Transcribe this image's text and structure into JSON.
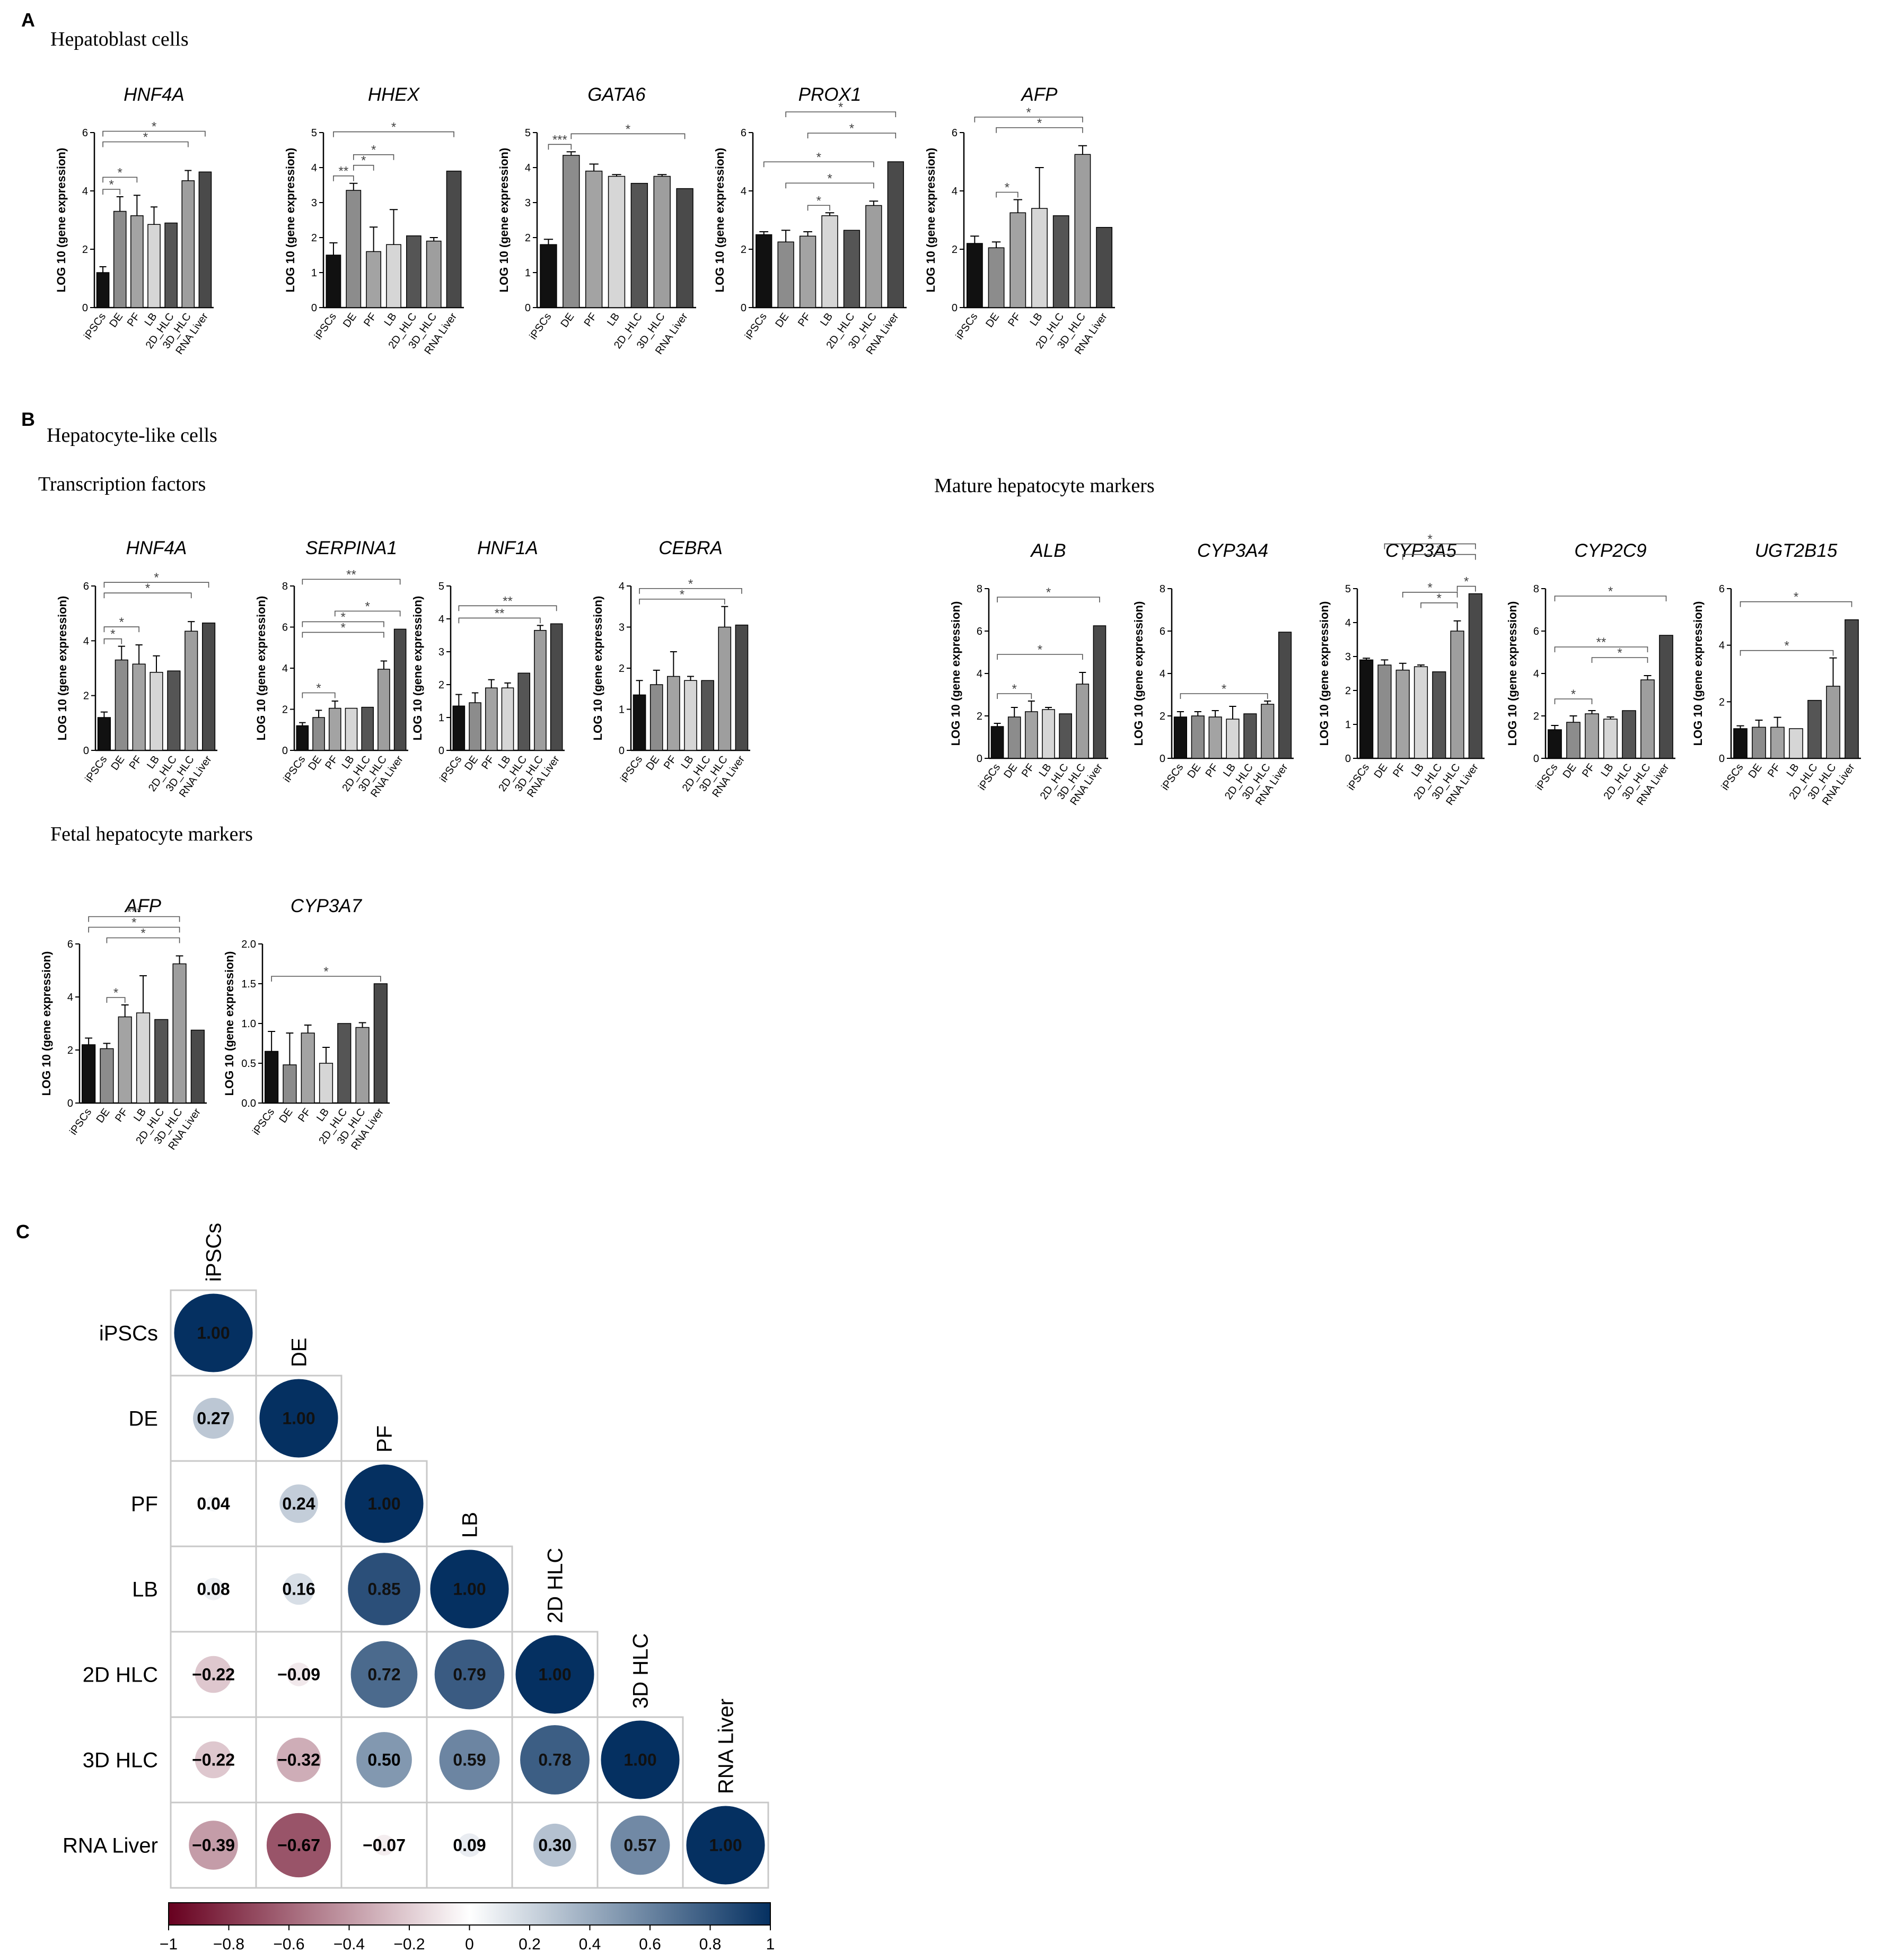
{
  "panels": {
    "A": {
      "letter": "A",
      "title": "Hepatoblast cells"
    },
    "B": {
      "letter": "B",
      "title": "Hepatocyte-like cells",
      "sub_tf": "Transcription factors",
      "sub_mature": "Mature hepatocyte markers",
      "sub_fetal": "Fetal hepatocyte markers"
    },
    "C": {
      "letter": "C"
    }
  },
  "y_axis_label": "LOG 10 (gene expression)",
  "categories": [
    "iPSCs",
    "DE",
    "PF",
    "LB",
    "2D_HLC",
    "3D_HLC",
    "RNA Liver"
  ],
  "bar_colors": [
    "#111111",
    "#8c8c8c",
    "#a3a3a3",
    "#d6d6d6",
    "#555555",
    "#9e9e9e",
    "#4a4a4a"
  ],
  "chart_data": [
    {
      "id": "A1",
      "type": "bar",
      "title": "HNF4A",
      "ylim": [
        0,
        6
      ],
      "yticks": [
        0,
        2,
        4,
        6
      ],
      "values": [
        1.2,
        3.3,
        3.15,
        2.85,
        2.9,
        4.35,
        4.65
      ],
      "errors": [
        0.2,
        0.5,
        0.7,
        0.6,
        0,
        0.35,
        0
      ],
      "sig": [
        {
          "from": 0,
          "to": 1,
          "label": "*"
        },
        {
          "from": 0,
          "to": 2,
          "label": "*"
        },
        {
          "from": 0,
          "to": 5,
          "label": "*"
        },
        {
          "from": 0,
          "to": 6,
          "label": "*"
        }
      ]
    },
    {
      "id": "A2",
      "type": "bar",
      "title": "HHEX",
      "ylim": [
        0,
        5
      ],
      "yticks": [
        0,
        1,
        2,
        3,
        4,
        5
      ],
      "values": [
        1.5,
        3.35,
        1.6,
        1.8,
        2.05,
        1.9,
        3.9
      ],
      "errors": [
        0.35,
        0.2,
        0.7,
        1.0,
        0,
        0.1,
        0
      ],
      "sig": [
        {
          "from": 0,
          "to": 1,
          "label": "**"
        },
        {
          "from": 1,
          "to": 2,
          "label": "*"
        },
        {
          "from": 1,
          "to": 3,
          "label": "*"
        },
        {
          "from": 0,
          "to": 6,
          "label": "*"
        }
      ]
    },
    {
      "id": "A3",
      "type": "bar",
      "title": "GATA6",
      "ylim": [
        0,
        5
      ],
      "yticks": [
        0,
        1,
        2,
        3,
        4,
        5
      ],
      "values": [
        1.8,
        4.35,
        3.9,
        3.75,
        3.55,
        3.75,
        3.4
      ],
      "errors": [
        0.15,
        0.1,
        0.2,
        0.05,
        0,
        0.05,
        0
      ],
      "sig": [
        {
          "from": 0,
          "to": 1,
          "label": "***"
        },
        {
          "from": 1,
          "to": 6,
          "label": "*"
        }
      ]
    },
    {
      "id": "A4",
      "type": "bar",
      "title": "PROX1",
      "ylim": [
        0,
        6
      ],
      "yticks": [
        0,
        2,
        4,
        6
      ],
      "values": [
        2.5,
        2.25,
        2.45,
        3.15,
        2.65,
        3.5,
        5.0
      ],
      "errors": [
        0.1,
        0.4,
        0.15,
        0.1,
        0,
        0.15,
        0
      ],
      "sig": [
        {
          "from": 2,
          "to": 3,
          "label": "*"
        },
        {
          "from": 1,
          "to": 5,
          "label": "*"
        },
        {
          "from": 0,
          "to": 5,
          "label": "*"
        },
        {
          "from": 2,
          "to": 6,
          "label": "*"
        },
        {
          "from": 1,
          "to": 6,
          "label": "*"
        }
      ]
    },
    {
      "id": "A5",
      "type": "bar",
      "title": "AFP",
      "ylim": [
        0,
        6
      ],
      "yticks": [
        0,
        2,
        4,
        6
      ],
      "values": [
        2.2,
        2.05,
        3.25,
        3.4,
        3.15,
        5.25,
        2.75
      ],
      "errors": [
        0.25,
        0.2,
        0.45,
        1.4,
        0,
        0.3,
        0
      ],
      "sig": [
        {
          "from": 1,
          "to": 2,
          "label": "*"
        },
        {
          "from": 1,
          "to": 5,
          "label": "*"
        },
        {
          "from": 0,
          "to": 5,
          "label": "*"
        }
      ]
    },
    {
      "id": "B1",
      "type": "bar",
      "title": "HNF4A",
      "ylim": [
        0,
        6
      ],
      "yticks": [
        0,
        2,
        4,
        6
      ],
      "values": [
        1.2,
        3.3,
        3.15,
        2.85,
        2.9,
        4.35,
        4.65
      ],
      "errors": [
        0.2,
        0.5,
        0.7,
        0.6,
        0,
        0.35,
        0
      ],
      "sig": [
        {
          "from": 0,
          "to": 1,
          "label": "*"
        },
        {
          "from": 0,
          "to": 2,
          "label": "*"
        },
        {
          "from": 0,
          "to": 5,
          "label": "*"
        },
        {
          "from": 0,
          "to": 6,
          "label": "*"
        }
      ]
    },
    {
      "id": "B2",
      "type": "bar",
      "title": "SERPINA1",
      "ylim": [
        0,
        8
      ],
      "yticks": [
        0,
        2,
        4,
        6,
        8
      ],
      "values": [
        1.2,
        1.6,
        2.05,
        2.05,
        2.1,
        3.95,
        5.9
      ],
      "errors": [
        0.15,
        0.35,
        0.35,
        0,
        0,
        0.4,
        0
      ],
      "sig": [
        {
          "from": 0,
          "to": 2,
          "label": "*"
        },
        {
          "from": 0,
          "to": 5,
          "label": "*"
        },
        {
          "from": 0,
          "to": 5,
          "label": "*"
        },
        {
          "from": 0,
          "to": 6,
          "label": "**"
        },
        {
          "from": 2,
          "to": 6,
          "label": "*"
        }
      ]
    },
    {
      "id": "B3",
      "type": "bar",
      "title": "HNF1A",
      "ylim": [
        0,
        5
      ],
      "yticks": [
        0,
        1,
        2,
        3,
        4,
        5
      ],
      "values": [
        1.35,
        1.45,
        1.9,
        1.9,
        2.35,
        3.65,
        3.85
      ],
      "errors": [
        0.35,
        0.3,
        0.25,
        0.15,
        0,
        0.15,
        0
      ],
      "sig": [
        {
          "from": 0,
          "to": 5,
          "label": "**"
        },
        {
          "from": 0,
          "to": 6,
          "label": "**"
        }
      ]
    },
    {
      "id": "B4",
      "type": "bar",
      "title": "CEBRA",
      "ylim": [
        0,
        4
      ],
      "yticks": [
        0,
        1,
        2,
        3,
        4
      ],
      "values": [
        1.35,
        1.6,
        1.8,
        1.7,
        1.7,
        3.0,
        3.05
      ],
      "errors": [
        0.35,
        0.35,
        0.6,
        0.1,
        0,
        0.5,
        0
      ],
      "sig": [
        {
          "from": 0,
          "to": 5,
          "label": "*"
        },
        {
          "from": 0,
          "to": 6,
          "label": "*"
        }
      ]
    },
    {
      "id": "B5",
      "type": "bar",
      "title": "ALB",
      "ylim": [
        0,
        8
      ],
      "yticks": [
        0,
        2,
        4,
        6,
        8
      ],
      "values": [
        1.5,
        1.95,
        2.2,
        2.3,
        2.1,
        3.5,
        6.25
      ],
      "errors": [
        0.15,
        0.45,
        0.5,
        0.1,
        0,
        0.55,
        0
      ],
      "sig": [
        {
          "from": 0,
          "to": 2,
          "label": "*"
        },
        {
          "from": 0,
          "to": 5,
          "label": "*"
        },
        {
          "from": 0,
          "to": 6,
          "label": "*"
        }
      ]
    },
    {
      "id": "B6",
      "type": "bar",
      "title": "CYP3A4",
      "ylim": [
        0,
        8
      ],
      "yticks": [
        0,
        2,
        4,
        6,
        8
      ],
      "values": [
        1.95,
        2.0,
        1.95,
        1.85,
        2.1,
        2.55,
        5.95
      ],
      "errors": [
        0.25,
        0.2,
        0.3,
        0.6,
        0,
        0.15,
        0
      ],
      "sig": [
        {
          "from": 0,
          "to": 5,
          "label": "*"
        }
      ]
    },
    {
      "id": "B7",
      "type": "bar",
      "title": "CYP3A5",
      "ylim": [
        0,
        5
      ],
      "yticks": [
        0,
        1,
        2,
        3,
        4,
        5
      ],
      "values": [
        2.9,
        2.75,
        2.6,
        2.7,
        2.55,
        3.75,
        4.85
      ],
      "errors": [
        0.05,
        0.15,
        0.2,
        0.05,
        0,
        0.3,
        0
      ],
      "sig": [
        {
          "from": 3,
          "to": 5,
          "label": "*"
        },
        {
          "from": 2,
          "to": 5,
          "label": "*"
        },
        {
          "from": 1,
          "to": 6,
          "label": "*"
        },
        {
          "from": 2,
          "to": 6,
          "label": "*"
        },
        {
          "from": 5,
          "to": 6,
          "label": "*"
        }
      ]
    },
    {
      "id": "B8",
      "type": "bar",
      "title": "CYP2C9",
      "ylim": [
        0,
        8
      ],
      "yticks": [
        0,
        2,
        4,
        6,
        8
      ],
      "values": [
        1.35,
        1.7,
        2.1,
        1.85,
        2.25,
        3.7,
        5.8
      ],
      "errors": [
        0.2,
        0.3,
        0.15,
        0.1,
        0,
        0.2,
        0
      ],
      "sig": [
        {
          "from": 0,
          "to": 2,
          "label": "*"
        },
        {
          "from": 0,
          "to": 5,
          "label": "**"
        },
        {
          "from": 2,
          "to": 5,
          "label": "*"
        },
        {
          "from": 0,
          "to": 6,
          "label": "*"
        }
      ]
    },
    {
      "id": "B9",
      "type": "bar",
      "title": "UGT2B15",
      "ylim": [
        0,
        6
      ],
      "yticks": [
        0,
        2,
        4,
        6
      ],
      "values": [
        1.05,
        1.1,
        1.1,
        1.05,
        2.05,
        2.55,
        4.9
      ],
      "errors": [
        0.1,
        0.25,
        0.35,
        0,
        0,
        1.0,
        0
      ],
      "sig": [
        {
          "from": 0,
          "to": 5,
          "label": "*"
        },
        {
          "from": 0,
          "to": 6,
          "label": "*"
        }
      ]
    },
    {
      "id": "B10",
      "type": "bar",
      "title": "AFP",
      "ylim": [
        0,
        6
      ],
      "yticks": [
        0,
        2,
        4,
        6
      ],
      "values": [
        2.2,
        2.05,
        3.25,
        3.4,
        3.15,
        5.25,
        2.75
      ],
      "errors": [
        0.25,
        0.2,
        0.45,
        1.4,
        0,
        0.3,
        0
      ],
      "sig": [
        {
          "from": 1,
          "to": 2,
          "label": "*"
        },
        {
          "from": 1,
          "to": 5,
          "label": "*"
        },
        {
          "from": 0,
          "to": 5,
          "label": "*"
        },
        {
          "from": 0,
          "to": 5,
          "label": "***"
        }
      ]
    },
    {
      "id": "B11",
      "type": "bar",
      "title": "CYP3A7",
      "ylim": [
        0,
        2.0
      ],
      "yticks": [
        0,
        0.5,
        1.0,
        1.5,
        2.0
      ],
      "tickfmt": 1,
      "values": [
        0.65,
        0.48,
        0.88,
        0.5,
        1.0,
        0.95,
        1.5
      ],
      "errors": [
        0.25,
        0.4,
        0.1,
        0.2,
        0,
        0.06,
        0
      ],
      "sig": [
        {
          "from": 0,
          "to": 6,
          "label": "*"
        }
      ]
    },
    {
      "id": "C",
      "type": "heatmap",
      "labels": [
        "iPSCs",
        "DE",
        "PF",
        "LB",
        "2D HLC",
        "3D HLC",
        "RNA Liver"
      ],
      "matrix": [
        [
          1.0,
          null,
          null,
          null,
          null,
          null,
          null
        ],
        [
          0.27,
          1.0,
          null,
          null,
          null,
          null,
          null
        ],
        [
          0.04,
          0.24,
          1.0,
          null,
          null,
          null,
          null
        ],
        [
          0.08,
          0.16,
          0.85,
          1.0,
          null,
          null,
          null
        ],
        [
          -0.22,
          -0.09,
          0.72,
          0.79,
          1.0,
          null,
          null
        ],
        [
          -0.22,
          -0.32,
          0.5,
          0.59,
          0.78,
          1.0,
          null
        ],
        [
          -0.39,
          -0.67,
          -0.07,
          0.09,
          0.3,
          0.57,
          1.0
        ]
      ],
      "value_labels": [
        [
          "1.00"
        ],
        [
          "0.27",
          "1.00"
        ],
        [
          "0.04",
          "0.24",
          "1.00"
        ],
        [
          "0.08",
          "0.16",
          "0.85",
          "1.00"
        ],
        [
          "−0.22",
          "−0.09",
          "0.72",
          "0.79",
          "1.00"
        ],
        [
          "−0.22",
          "−0.32",
          "0.50",
          "0.59",
          "0.78",
          "1.00"
        ],
        [
          "−0.39",
          "−0.67",
          "−0.07",
          "0.09",
          "0.30",
          "0.57",
          "1.00"
        ]
      ],
      "colorbar": {
        "range": [
          -1,
          1
        ],
        "ticks": [
          "−1",
          "−0.8",
          "−0.6",
          "−0.4",
          "−0.2",
          "0",
          "0.2",
          "0.4",
          "0.6",
          "0.8",
          "1"
        ],
        "neg_color": "#67001f",
        "mid_color": "#ffffff",
        "pos_color": "#053061"
      }
    }
  ]
}
